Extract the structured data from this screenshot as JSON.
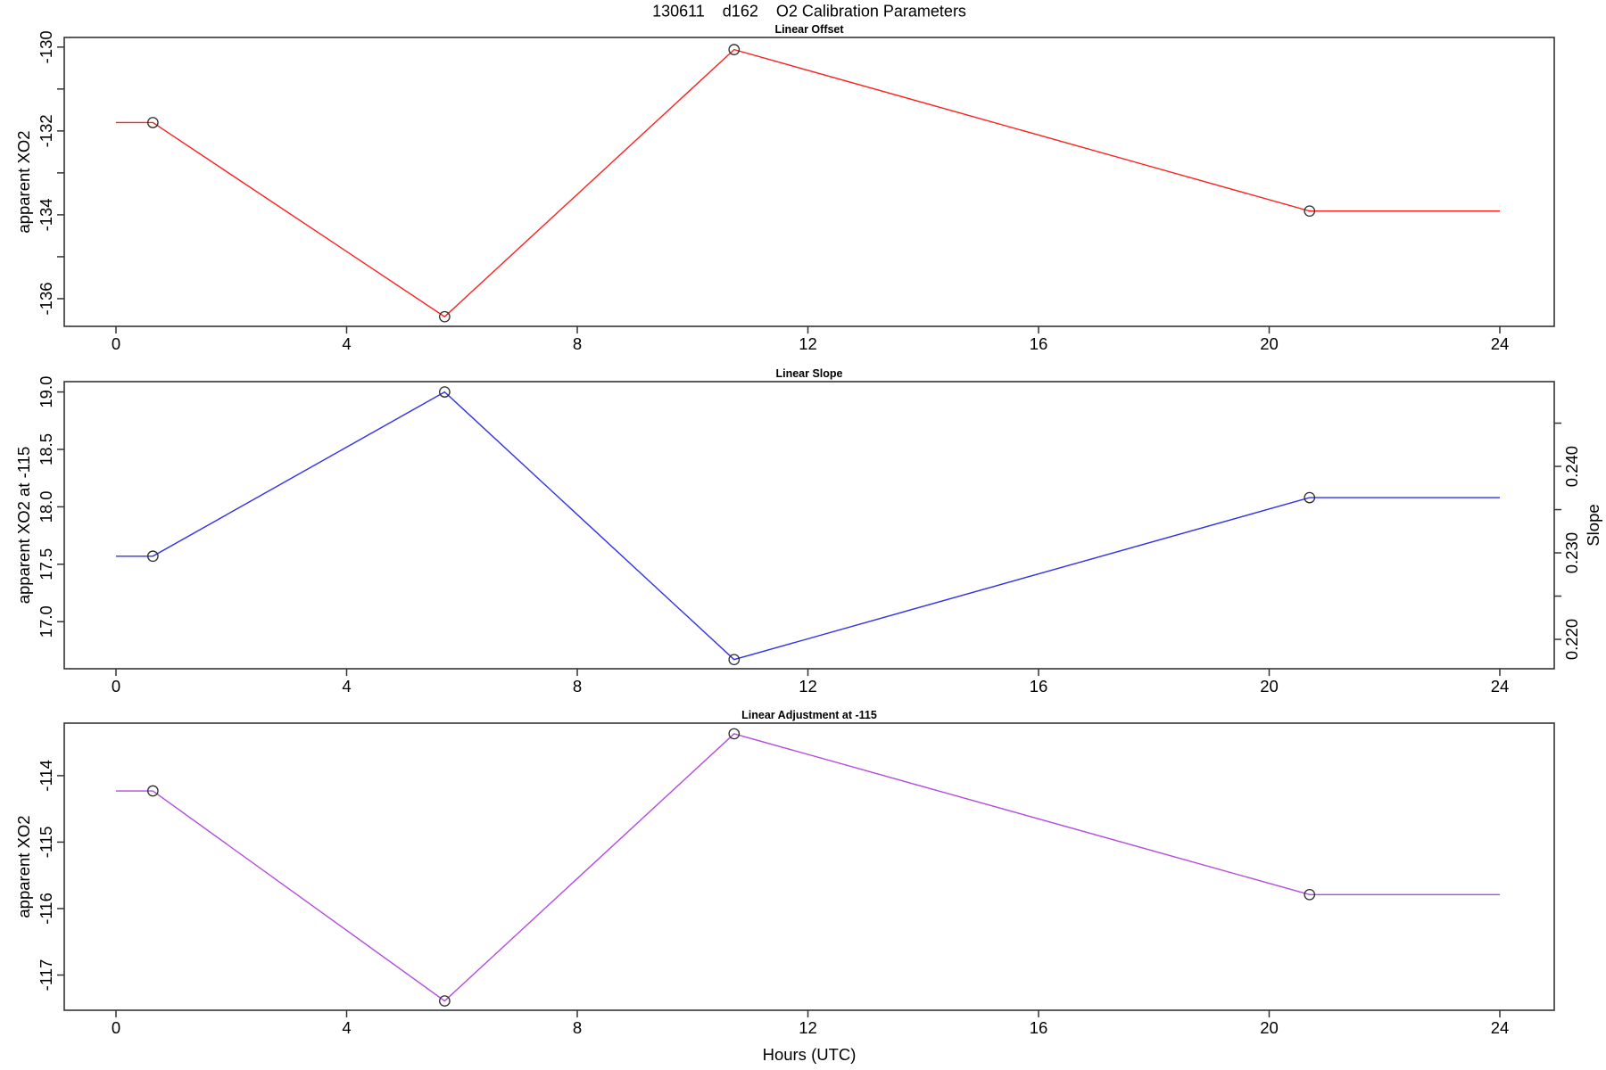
{
  "figure": {
    "title": "130611    d162    O2 Calibration Parameters",
    "xlabel": "Hours (UTC)"
  },
  "chart_data": {
    "type": "line",
    "title": "130611    d162    O2 Calibration Parameters",
    "x_axis": {
      "label": "Hours (UTC)",
      "ticks": [
        0,
        4,
        8,
        12,
        16,
        20,
        24
      ],
      "tick_labels": [
        "0",
        "4",
        "8",
        "12",
        "16",
        "20",
        "24"
      ],
      "xlim": [
        -0.9,
        24.94
      ]
    },
    "x": [
      0.64,
      5.7,
      10.72,
      20.7
    ],
    "line_extends_to_x": [
      0,
      24
    ],
    "marker": {
      "shape": "open-circle",
      "radius": 5.7,
      "color": "#2e2e2e"
    },
    "axis_color": "#333333",
    "grid": false,
    "panels": [
      {
        "title": "Linear Offset",
        "ylabel": "apparent XO2",
        "color": "#fc201d",
        "values": [
          -131.8,
          -136.43,
          -130.06,
          -133.91
        ],
        "ylim": [
          -136.66,
          -129.77
        ],
        "yticks": {
          "values": [
            -130,
            -132,
            -134,
            -136
          ],
          "labels": [
            "-130",
            "-132",
            "-134",
            "-136"
          ]
        },
        "yticks_unlabeled": [
          -131,
          -133,
          -135
        ]
      },
      {
        "title": "Linear Slope",
        "ylabel": "apparent XO2 at -115",
        "color": "#3231e8",
        "values": [
          17.57,
          19.0,
          16.67,
          18.08
        ],
        "ylim": [
          16.59,
          19.09
        ],
        "yticks": {
          "values": [
            17.0,
            17.5,
            18.0,
            18.5,
            19.0
          ],
          "labels": [
            "17.0",
            "17.5",
            "18.0",
            "18.5",
            "19.0"
          ]
        },
        "yticks_unlabeled": [],
        "right_axis": {
          "label": "Slope",
          "ylim": [
            0.2166,
            0.2498
          ],
          "ticks": {
            "values": [
              0.22,
              0.23,
              0.24
            ],
            "labels": [
              "0.220",
              "0.230",
              "0.240"
            ]
          },
          "ticks_unlabeled": [
            0.225,
            0.235,
            0.245
          ],
          "values_on_right_scale": [
            0.2296,
            0.2486,
            0.2177,
            0.2363
          ]
        }
      },
      {
        "title": "Linear Adjustment at -115",
        "ylabel": "apparent XO2",
        "color": "#b44be2",
        "values": [
          -114.23,
          -117.39,
          -113.37,
          -115.79
        ],
        "ylim": [
          -117.53,
          -113.21
        ],
        "yticks": {
          "values": [
            -114,
            -115,
            -116,
            -117
          ],
          "labels": [
            "-114",
            "-115",
            "-116",
            "-117"
          ]
        },
        "yticks_unlabeled": []
      }
    ]
  }
}
